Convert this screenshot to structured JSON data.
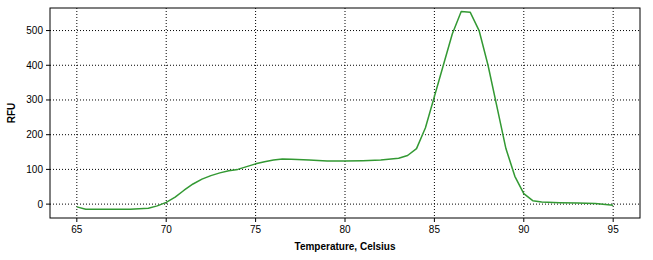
{
  "chart_data": {
    "type": "line",
    "x_label": "Temperature, Celsius",
    "y_label": "RFU",
    "x": [
      65,
      65.5,
      66,
      67,
      68,
      69,
      69.5,
      70,
      70.5,
      71,
      71.5,
      72,
      72.5,
      73,
      73.5,
      74,
      74.5,
      75,
      75.5,
      76,
      76.5,
      77,
      78,
      79,
      80,
      81,
      82,
      83,
      83.5,
      84,
      84.5,
      85,
      85.5,
      86,
      86.5,
      87,
      87.5,
      88,
      88.5,
      89,
      89.5,
      90,
      90.5,
      91,
      92,
      93,
      94,
      95
    ],
    "series": [
      {
        "color": "#339933",
        "values": [
          -8,
          -15,
          -15,
          -15,
          -15,
          -12,
          -5,
          5,
          20,
          40,
          58,
          72,
          82,
          90,
          96,
          100,
          108,
          116,
          122,
          127,
          130,
          129,
          127,
          124,
          124,
          125,
          127,
          132,
          140,
          160,
          220,
          310,
          400,
          490,
          555,
          553,
          500,
          400,
          280,
          160,
          80,
          30,
          10,
          6,
          4,
          3,
          2,
          -3
        ]
      }
    ],
    "xlim": [
      63.5,
      96.5
    ],
    "ylim": [
      -40,
      565
    ],
    "xticks": [
      65,
      70,
      75,
      80,
      85,
      90,
      95
    ],
    "yticks": [
      0,
      100,
      200,
      300,
      400,
      500
    ],
    "grid": true
  }
}
